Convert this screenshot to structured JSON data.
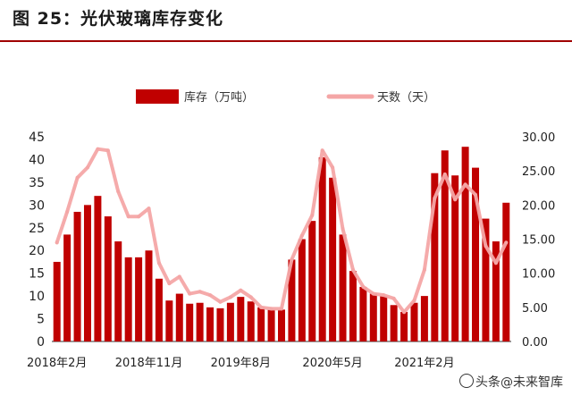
{
  "figure_title": "图 25：光伏玻璃库存变化",
  "watermark": "头条@未来智库",
  "colors": {
    "bars": "#c00000",
    "line": "#f4a6a6",
    "title_rule": "#a00000",
    "axis": "#333333"
  },
  "chart_data": {
    "type": "bar",
    "legend_placement": "top",
    "grid": false,
    "x_tick_labels": [
      "2018年2月",
      "2018年11月",
      "2019年8月",
      "2020年5月",
      "2021年2月"
    ],
    "y_left": {
      "ylim": [
        0,
        45
      ],
      "ticks": [
        "0",
        "5",
        "10",
        "15",
        "20",
        "25",
        "30",
        "35",
        "40",
        "45"
      ]
    },
    "y_right": {
      "ylim": [
        0,
        30
      ],
      "ticks": [
        "0.00",
        "5.00",
        "10.00",
        "15.00",
        "20.00",
        "25.00",
        "30.00"
      ]
    },
    "series": [
      {
        "name": "库存（万吨）",
        "type": "bar",
        "axis": "left",
        "values": [
          17.5,
          23.5,
          28.5,
          30.0,
          32.0,
          27.5,
          22.0,
          18.5,
          18.5,
          20.0,
          13.8,
          9.0,
          10.5,
          8.3,
          8.5,
          7.5,
          7.3,
          8.5,
          9.8,
          8.8,
          7.5,
          7.0,
          7.0,
          18.0,
          22.5,
          26.5,
          40.5,
          36.0,
          23.5,
          15.5,
          12.0,
          10.5,
          10.0,
          8.0,
          6.5,
          8.5,
          10.0,
          37.0,
          42.0,
          36.5,
          42.8,
          38.2,
          27.0,
          22.0,
          30.5
        ]
      },
      {
        "name": "天数（天）",
        "type": "line",
        "axis": "right",
        "values": [
          14.5,
          19.0,
          24.0,
          25.5,
          28.2,
          28.0,
          22.0,
          18.3,
          18.3,
          19.5,
          11.5,
          8.5,
          9.5,
          7.0,
          7.3,
          6.8,
          5.8,
          6.5,
          7.5,
          6.5,
          5.0,
          4.8,
          4.8,
          12.0,
          15.5,
          18.5,
          28.0,
          25.5,
          16.5,
          10.5,
          8.0,
          7.0,
          6.8,
          6.3,
          4.3,
          6.0,
          10.5,
          21.0,
          24.5,
          20.8,
          23.0,
          21.5,
          14.0,
          11.5,
          14.5
        ]
      }
    ]
  }
}
